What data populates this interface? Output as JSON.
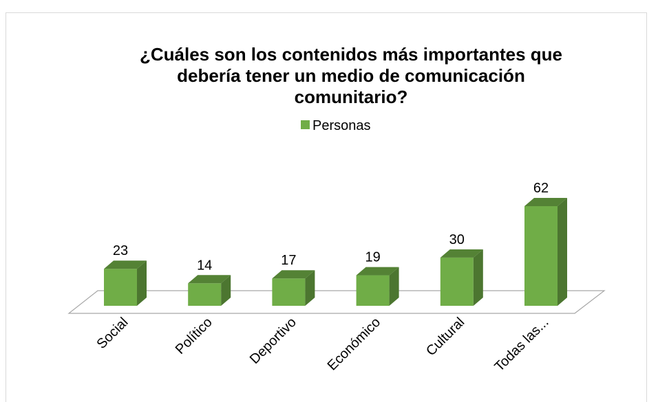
{
  "chart_data": {
    "type": "bar3d",
    "title": "¿Cuáles son los contenidos más importantes que debería tener un medio de comunicación comunitario?",
    "categories": [
      "Social",
      "Político",
      "Deportivo",
      "Económico",
      "Cultural",
      "Todas las..."
    ],
    "series": [
      {
        "name": "Personas",
        "color": "#70ad47",
        "values": [
          23,
          14,
          17,
          19,
          30,
          62
        ]
      }
    ],
    "legend": "top"
  }
}
